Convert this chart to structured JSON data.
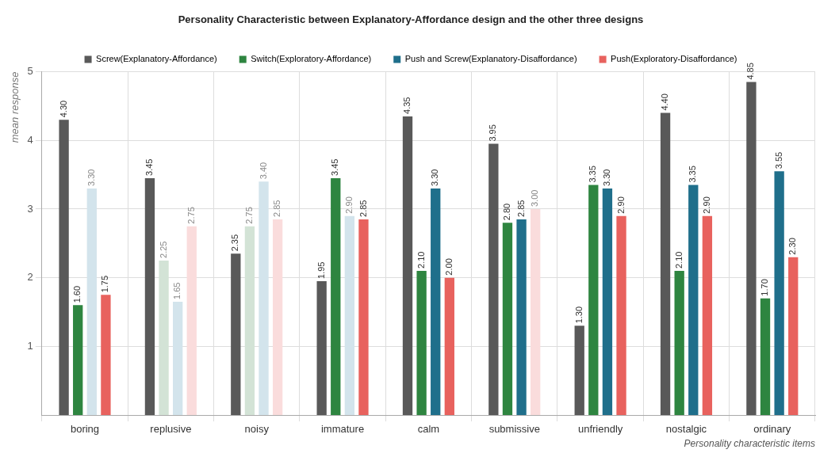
{
  "chart_data": {
    "type": "bar",
    "title": "Personality Characteristic between Explanatory-Affordance design and the other three designs",
    "xlabel": "Personality characteristic items",
    "ylabel": "mean response",
    "categories": [
      "boring",
      "replusive",
      "noisy",
      "immature",
      "calm",
      "submissive",
      "unfriendly",
      "nostalgic",
      "ordinary"
    ],
    "series": [
      {
        "name": "Screw(Explanatory-Affordance)",
        "color": "#595959",
        "values": [
          4.3,
          3.45,
          2.35,
          1.95,
          4.35,
          3.95,
          1.3,
          4.4,
          4.85
        ],
        "value_labels": [
          "4.30",
          "3.45",
          "2.35",
          "1.95",
          "4.35",
          "3.95",
          "1.30",
          "4.40",
          "4.85"
        ]
      },
      {
        "name": "Switch(Exploratory-Affordance)",
        "color": "#2e8540",
        "colors": [
          "#2e8540",
          "#d3e3d6",
          "#d3e3d6",
          "#2e8540",
          "#2e8540",
          "#2e8540",
          "#2e8540",
          "#2e8540",
          "#2e8540"
        ],
        "values": [
          1.6,
          2.25,
          2.75,
          3.45,
          2.1,
          2.8,
          3.35,
          2.1,
          1.7
        ],
        "value_labels": [
          "1.60",
          "2.25",
          "2.75",
          "3.45",
          "2.10",
          "2.80",
          "3.35",
          "2.10",
          "1.70"
        ]
      },
      {
        "name": "Push and Screw(Explanatory-Disaffordance)",
        "color": "#1f6f8b",
        "colors": [
          "#d3e4ec",
          "#d3e4ec",
          "#d3e4ec",
          "#d3e4ec",
          "#1f6f8b",
          "#1f6f8b",
          "#1f6f8b",
          "#1f6f8b",
          "#1f6f8b"
        ],
        "values": [
          3.3,
          1.65,
          3.4,
          2.9,
          3.3,
          2.85,
          3.3,
          3.35,
          3.55
        ],
        "value_labels": [
          "3.30",
          "1.65",
          "3.40",
          "2.90",
          "3.30",
          "2.85",
          "3.30",
          "3.35",
          "3.55"
        ]
      },
      {
        "name": "Push(Exploratory-Disaffordance)",
        "color": "#e8625e",
        "colors": [
          "#e8625e",
          "#fadcdc",
          "#fadcdc",
          "#e8625e",
          "#e8625e",
          "#fadcdc",
          "#e8625e",
          "#e8625e",
          "#e8625e"
        ],
        "values": [
          1.75,
          2.75,
          2.85,
          2.85,
          2.0,
          3.0,
          2.9,
          2.9,
          2.3
        ],
        "value_labels": [
          "1.75",
          "2.75",
          "2.85",
          "2.85",
          "2.00",
          "3.00",
          "2.90",
          "2.90",
          "2.30"
        ]
      }
    ],
    "ylim": [
      0,
      5
    ],
    "yticks": [
      1,
      2,
      3,
      4,
      5
    ],
    "grid": true,
    "legend": "top"
  }
}
